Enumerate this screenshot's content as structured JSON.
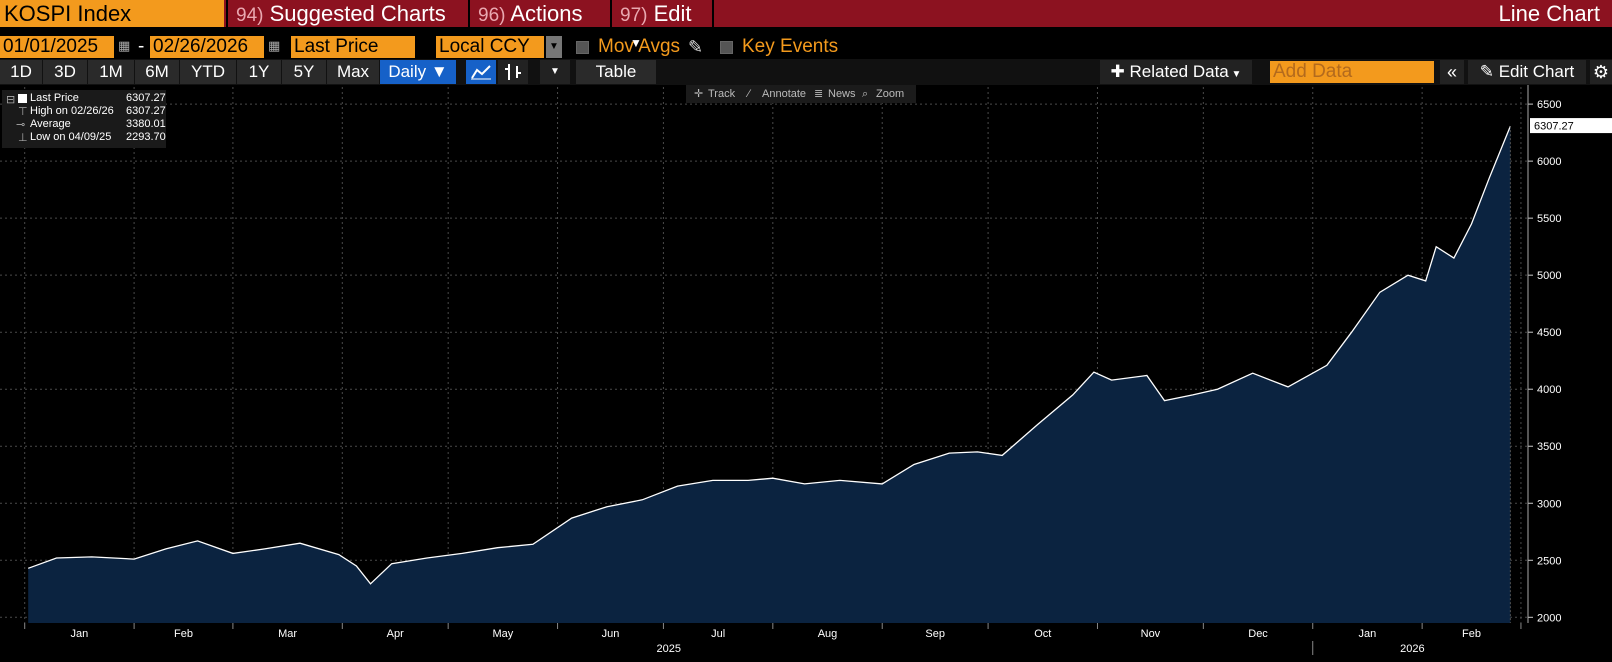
{
  "header": {
    "ticker": "KOSPI Index",
    "menus": [
      {
        "num": "94)",
        "label": "Suggested Charts"
      },
      {
        "num": "96)",
        "label": "Actions"
      },
      {
        "num": "97)",
        "label": "Edit"
      }
    ],
    "chart_type_title": "Line Chart"
  },
  "controls": {
    "start_date": "01/01/2025",
    "end_date": "02/26/2026",
    "date_separator": "-",
    "field": "Last Price",
    "currency": "Local CCY",
    "mov_avgs_label": "Mov Avgs",
    "key_events_label": "Key Events"
  },
  "ranges": {
    "buttons": [
      "1D",
      "3D",
      "1M",
      "6M",
      "YTD",
      "1Y",
      "5Y",
      "Max"
    ],
    "frequency": "Daily ▼",
    "table_label": "Table",
    "related_data": "Related Data",
    "add_data_placeholder": "Add Data",
    "edit_chart": "Edit Chart"
  },
  "mini_toolbar": {
    "track": "Track",
    "annotate": "Annotate",
    "news": "News",
    "zoom": "Zoom"
  },
  "legend": {
    "rows": [
      {
        "label": "Last Price",
        "value": "6307.27"
      },
      {
        "label": "High on 02/26/26",
        "value": "6307.27"
      },
      {
        "label": "Average",
        "value": "3380.01"
      },
      {
        "label": "Low on 04/09/25",
        "value": "2293.70"
      }
    ]
  },
  "colors": {
    "area_fill": "#0b2340",
    "line": "#ffffff",
    "accent_orange": "#f39a1d",
    "header_red": "#8c1220",
    "active_blue": "#1661c8"
  },
  "chart_data": {
    "type": "area",
    "ylim": [
      1950,
      6650
    ],
    "yticks": [
      2000,
      2500,
      3000,
      3500,
      4000,
      4500,
      5000,
      5500,
      6000,
      6500
    ],
    "last_value_label": "6307.27",
    "months": [
      "Jan",
      "Feb",
      "Mar",
      "Apr",
      "May",
      "Jun",
      "Jul",
      "Aug",
      "Sep",
      "Oct",
      "Nov",
      "Dec",
      "Jan",
      "Feb"
    ],
    "years": [
      "2025",
      "2026"
    ],
    "x": [
      "2025-01-02",
      "2025-01-10",
      "2025-01-20",
      "2025-02-01",
      "2025-02-10",
      "2025-02-19",
      "2025-03-01",
      "2025-03-10",
      "2025-03-20",
      "2025-03-31",
      "2025-04-05",
      "2025-04-09",
      "2025-04-15",
      "2025-04-25",
      "2025-05-05",
      "2025-05-15",
      "2025-05-25",
      "2025-06-05",
      "2025-06-15",
      "2025-06-25",
      "2025-07-05",
      "2025-07-15",
      "2025-07-25",
      "2025-08-01",
      "2025-08-10",
      "2025-08-20",
      "2025-09-01",
      "2025-09-10",
      "2025-09-20",
      "2025-09-28",
      "2025-10-05",
      "2025-10-15",
      "2025-10-25",
      "2025-10-31",
      "2025-11-05",
      "2025-11-15",
      "2025-11-20",
      "2025-11-28",
      "2025-12-05",
      "2025-12-15",
      "2025-12-25",
      "2026-01-05",
      "2026-01-12",
      "2026-01-20",
      "2026-01-28",
      "2026-02-02",
      "2026-02-05",
      "2026-02-10",
      "2026-02-15",
      "2026-02-20",
      "2026-02-26"
    ],
    "y": [
      2430,
      2520,
      2530,
      2510,
      2600,
      2670,
      2560,
      2600,
      2650,
      2550,
      2450,
      2293.7,
      2470,
      2520,
      2560,
      2610,
      2640,
      2870,
      2970,
      3030,
      3150,
      3200,
      3200,
      3220,
      3170,
      3200,
      3170,
      3340,
      3440,
      3450,
      3420,
      3690,
      3950,
      4150,
      4080,
      4120,
      3900,
      3950,
      4000,
      4140,
      4020,
      4210,
      4500,
      4850,
      5000,
      4950,
      5250,
      5150,
      5450,
      5850,
      6307.27
    ]
  }
}
